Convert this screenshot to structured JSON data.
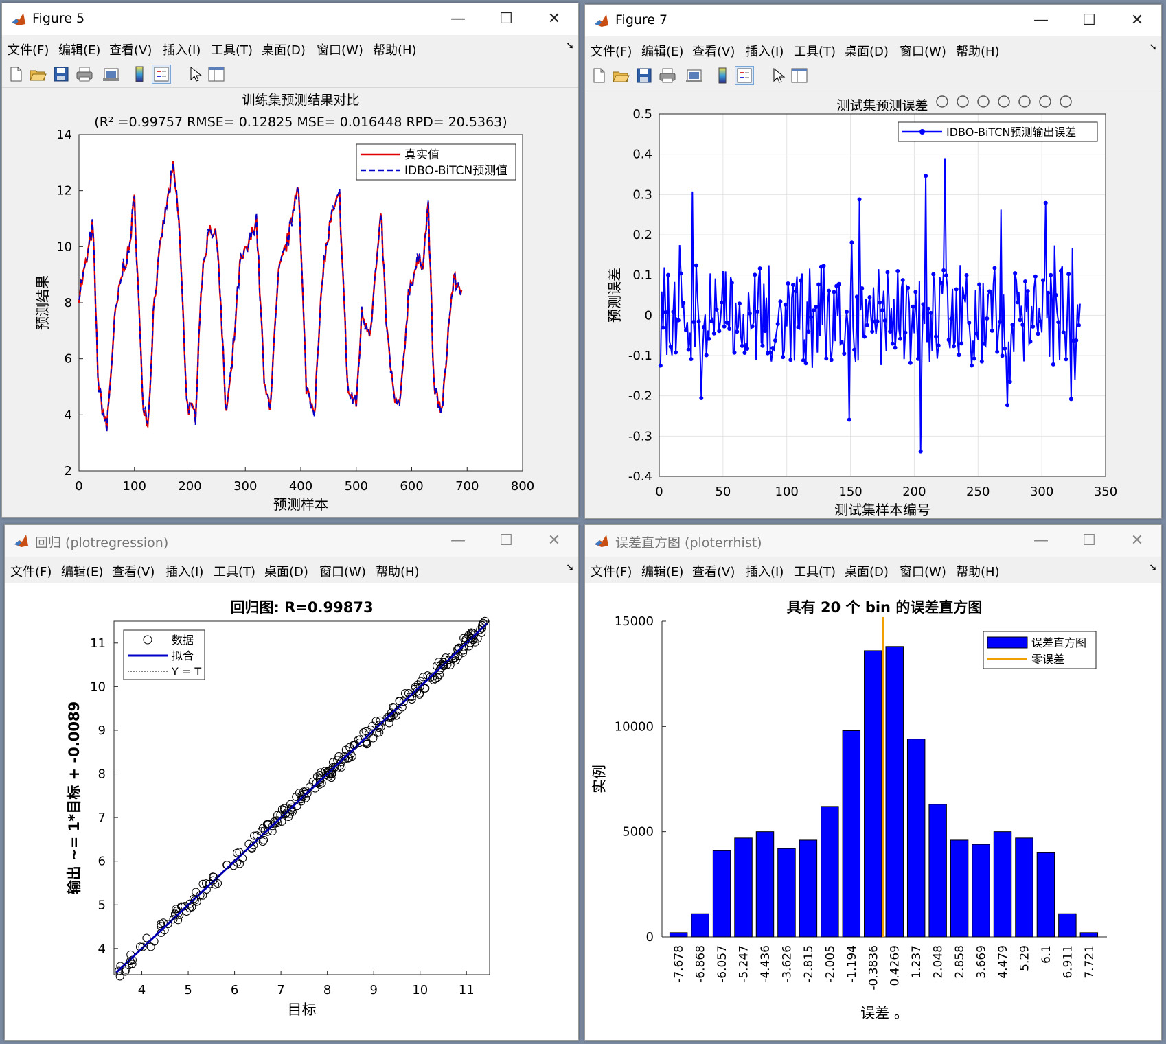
{
  "menu": [
    "文件(F)",
    "编辑(E)",
    "查看(V)",
    "插入(I)",
    "工具(T)",
    "桌面(D)",
    "窗口(W)",
    "帮助(H)"
  ],
  "window_controls": {
    "minimize": "—",
    "maximize": "☐",
    "close": "✕"
  },
  "colors": {
    "red": "#e00000",
    "blue": "#0000ff",
    "navy": "#0000c8",
    "orange": "#f0a000"
  },
  "windows": [
    {
      "id": "fig5",
      "title": "Figure 5",
      "chart": {
        "type": "line",
        "title_line1": "训练集预测结果对比",
        "title_line2": "(R² =0.99757 RMSE= 0.12825 MSE= 0.016448 RPD= 20.5363)",
        "xlabel": "预测样本",
        "ylabel": "预测结果",
        "xlim": [
          0,
          800
        ],
        "ylim": [
          2,
          14
        ],
        "xticks": [
          "0",
          "100",
          "200",
          "300",
          "400",
          "500",
          "600",
          "700",
          "800"
        ],
        "yticks": [
          "2",
          "4",
          "6",
          "8",
          "10",
          "12",
          "14"
        ],
        "legend": [
          "真实值",
          "IDBO-BiTCN预测值"
        ]
      }
    },
    {
      "id": "fig7",
      "title": "Figure 7",
      "chart": {
        "type": "line",
        "title": "测试集预测误差",
        "xlabel": "测试集样本编号",
        "ylabel": "预测误差",
        "xlim": [
          0,
          350
        ],
        "ylim": [
          -0.4,
          0.5
        ],
        "xticks": [
          "0",
          "50",
          "100",
          "150",
          "200",
          "250",
          "300",
          "350"
        ],
        "yticks": [
          "-0.4",
          "-0.3",
          "-0.2",
          "-0.1",
          "0",
          "0.1",
          "0.2",
          "0.3",
          "0.4",
          "0.5"
        ],
        "legend": [
          "IDBO-BiTCN预测输出误差"
        ],
        "grid": true
      }
    },
    {
      "id": "reg",
      "title": "回归 (plotregression)",
      "chart": {
        "type": "scatter",
        "title": "回归图: R=0.99873",
        "xlabel": "目标",
        "ylabel": "输出 ~= 1*目标 + -0.0089",
        "xlim": [
          3.4,
          11.5
        ],
        "ylim": [
          3.4,
          11.5
        ],
        "xticks": [
          "4",
          "5",
          "6",
          "7",
          "8",
          "9",
          "10",
          "11"
        ],
        "yticks": [
          "4",
          "5",
          "6",
          "7",
          "8",
          "9",
          "10",
          "11"
        ],
        "legend": [
          "数据",
          "拟合",
          "Y = T"
        ]
      }
    },
    {
      "id": "hist",
      "title": "误差直方图 (ploterrhist)",
      "chart": {
        "type": "bar",
        "title": "具有 20 个 bin 的误差直方图",
        "xlabel": "误差 。",
        "ylabel": "实例",
        "ylim": [
          0,
          15000
        ],
        "yticks": [
          "0",
          "5000",
          "10000",
          "15000"
        ],
        "categories": [
          "-7.678",
          "-6.868",
          "-6.057",
          "-5.247",
          "-4.436",
          "-3.626",
          "-2.815",
          "-2.005",
          "-1.194",
          "-0.3836",
          "0.4269",
          "1.237",
          "2.048",
          "2.858",
          "3.669",
          "4.479",
          "5.29",
          "6.1",
          "6.911",
          "7.721"
        ],
        "values": [
          200,
          1100,
          4100,
          4700,
          5000,
          4200,
          4600,
          6200,
          9800,
          13600,
          13800,
          9400,
          6300,
          4600,
          4400,
          5000,
          4700,
          4000,
          1100,
          200
        ],
        "zero_error_x": 0,
        "legend": [
          "误差直方图",
          "零误差"
        ]
      }
    }
  ]
}
